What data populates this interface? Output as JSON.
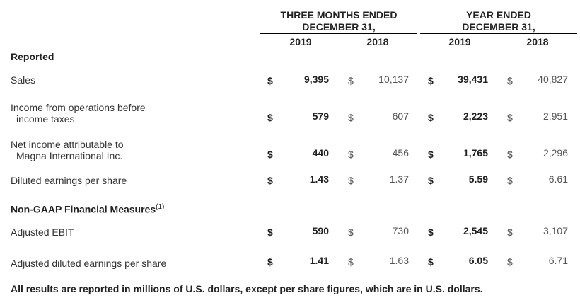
{
  "header": {
    "three_months": [
      "THREE MONTHS ENDED",
      "DECEMBER 31,"
    ],
    "year_ended": [
      "YEAR ENDED",
      "DECEMBER 31,"
    ],
    "years": [
      "2019",
      "2018",
      "2019",
      "2018"
    ]
  },
  "sections": {
    "reported": "Reported",
    "non_gaap": "Non-GAAP Financial Measures",
    "non_gaap_note": "(1)"
  },
  "currency_symbol": "$",
  "rows": [
    {
      "label": [
        "Sales"
      ],
      "values": [
        "9,395",
        "10,137",
        "39,431",
        "40,827"
      ]
    },
    {
      "label": [
        "Income from operations before",
        "income taxes"
      ],
      "values": [
        "579",
        "607",
        "2,223",
        "2,951"
      ]
    },
    {
      "label": [
        "Net income attributable to",
        "Magna International Inc."
      ],
      "values": [
        "440",
        "456",
        "1,765",
        "2,296"
      ]
    },
    {
      "label": [
        "Diluted earnings per share"
      ],
      "values": [
        "1.43",
        "1.37",
        "5.59",
        "6.61"
      ]
    },
    {
      "label": [
        "Adjusted EBIT"
      ],
      "values": [
        "590",
        "730",
        "2,545",
        "3,107"
      ]
    },
    {
      "label": [
        "Adjusted diluted earnings per share"
      ],
      "values": [
        "1.41",
        "1.63",
        "6.05",
        "6.71"
      ]
    }
  ],
  "footnote": "All results are reported in millions of U.S. dollars, except per share figures, which are in U.S. dollars."
}
